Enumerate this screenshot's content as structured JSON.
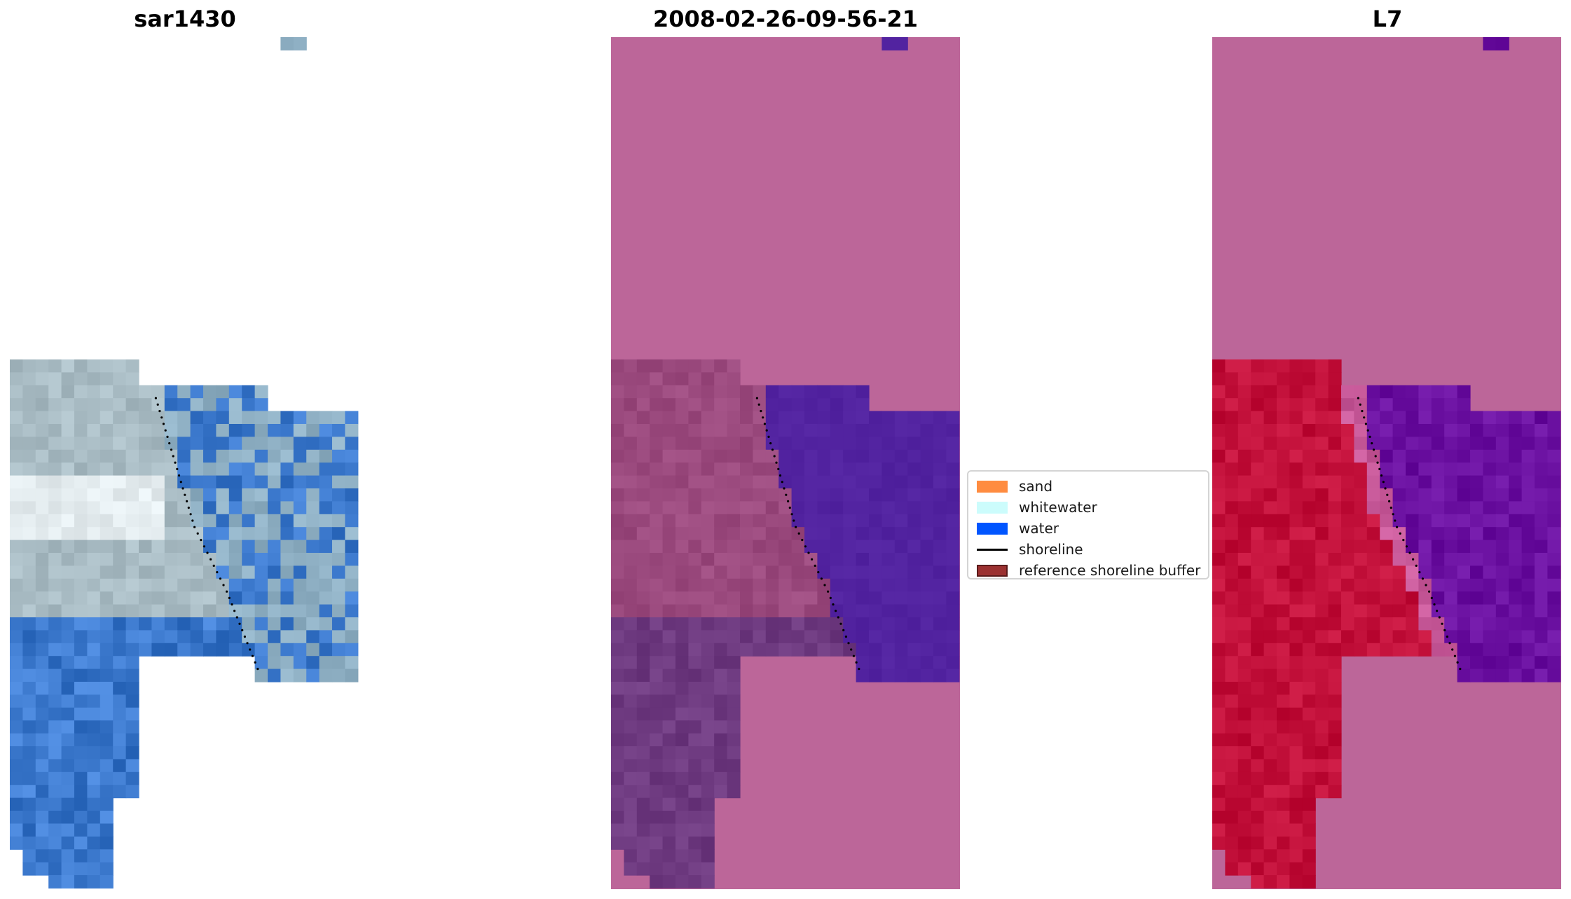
{
  "panels": [
    {
      "id": "image",
      "title": "sar1430"
    },
    {
      "id": "classified",
      "title": "2008-02-26-09-56-21"
    },
    {
      "id": "index",
      "title": "L7"
    }
  ],
  "legend": {
    "items": [
      {
        "label": "sand",
        "kind": "patch",
        "color": "#ff8c40"
      },
      {
        "label": "whitewater",
        "kind": "patch",
        "color": "#ccfcfc"
      },
      {
        "label": "water",
        "kind": "patch",
        "color": "#0055ff"
      },
      {
        "label": "shoreline",
        "kind": "line",
        "color": "#000000"
      },
      {
        "label": "reference shoreline buffer",
        "kind": "patch",
        "color": "#9b3131",
        "edge": "#5a1a1a"
      }
    ]
  },
  "colors": {
    "masked_overlay": "#bc6699",
    "water_class": "#5223a0",
    "water_dark": "#6e3a80",
    "land_buffer": "#9b4a7e",
    "index_land": "#c2103a",
    "index_water": "#6a10a0",
    "image_water": "#3b78cc",
    "image_land": "#a9bcc4",
    "image_bright": "#e4ecef",
    "shoreline": "#000000"
  }
}
